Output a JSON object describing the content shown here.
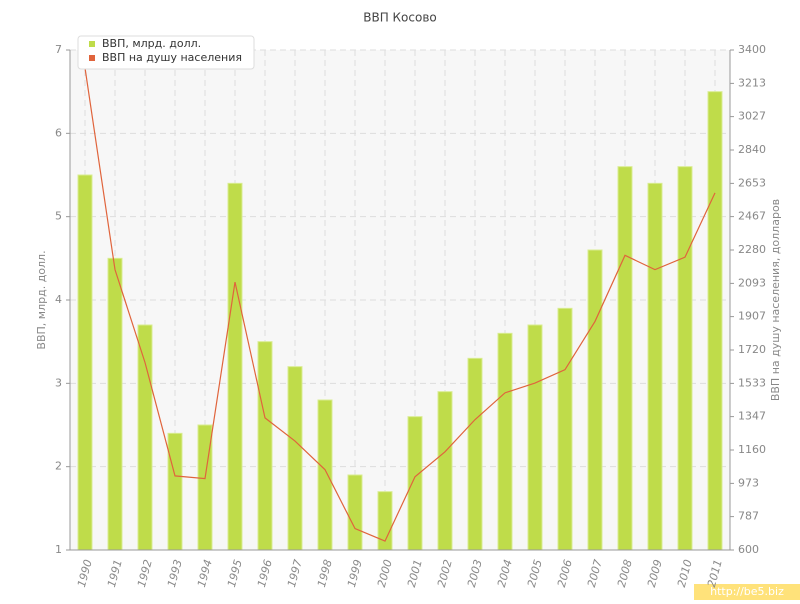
{
  "chart_data": {
    "type": "bar-line",
    "title": "ВВП Косово",
    "y_label": "ВВП, млрд. долл.",
    "y2_label": "ВВП на душу населения, долларов",
    "categories": [
      "1990",
      "1991",
      "1992",
      "1993",
      "1994",
      "1995",
      "1996",
      "1997",
      "1998",
      "1999",
      "2000",
      "2001",
      "2002",
      "2003",
      "2004",
      "2005",
      "2006",
      "2007",
      "2008",
      "2009",
      "2010",
      "2011"
    ],
    "series": [
      {
        "name": "ВВП, млрд. долл.",
        "color": "#bfdc4a",
        "values": [
          5.5,
          4.5,
          3.7,
          2.4,
          2.5,
          5.4,
          3.5,
          3.2,
          2.8,
          1.9,
          1.7,
          2.6,
          2.9,
          3.3,
          3.6,
          3.7,
          3.9,
          4.6,
          5.6,
          5.4,
          5.6,
          6.5
        ]
      },
      {
        "name": "ВВП на душу населения",
        "color": "#e0643c",
        "axis": "y2",
        "values": [
          3300,
          2170,
          1650,
          1015,
          1000,
          2100,
          1340,
          1210,
          1050,
          720,
          650,
          1010,
          1150,
          1330,
          1480,
          1535,
          1610,
          1880,
          2250,
          2170,
          2240,
          2600
        ]
      }
    ],
    "ylim": [
      1,
      7
    ],
    "yticks": [
      1,
      2,
      3,
      4,
      5,
      6,
      7
    ],
    "y2lim": [
      600,
      3400
    ],
    "y2ticks": [
      600,
      787,
      973,
      1160,
      1347,
      1533,
      1720,
      1907,
      2093,
      2280,
      2467,
      2653,
      2840,
      3027,
      3213,
      3400
    ],
    "grid": true,
    "legend": "top-left"
  },
  "watermark": "http://be5.biz"
}
